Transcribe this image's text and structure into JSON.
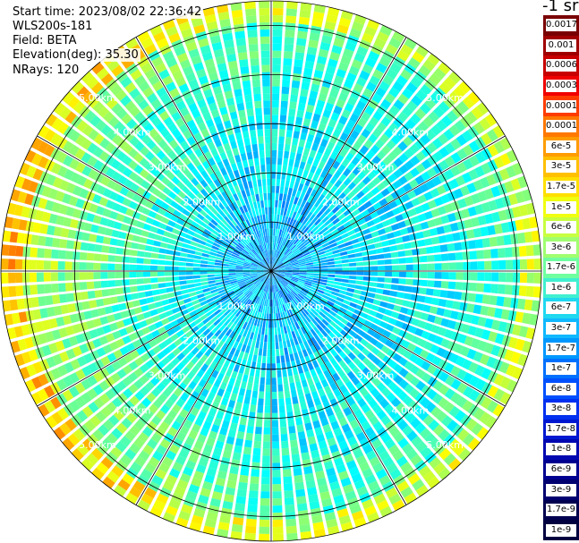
{
  "info": {
    "start_time": "Start time: 2023/08/02 22:36:42",
    "instrument": "WLS200s-181",
    "field": "Field: BETA",
    "elevation": "Elevation(deg): 35.30",
    "nrays": "NRays: 120"
  },
  "chart_data": {
    "type": "ppi-polar-heatmap",
    "field": "BETA",
    "elevation_deg": 35.3,
    "nrays": 120,
    "max_range_km": 5.5,
    "range_rings_km": [
      1,
      2,
      3,
      4,
      5
    ],
    "ring_labels": [
      "1.00km",
      "2.00km",
      "3.00km",
      "4.00km",
      "5.00km"
    ],
    "colorbar": {
      "unit_label": "-1 sr",
      "tick_labels": [
        "0.0017",
        "0.001",
        "0.0006",
        "0.0003",
        "0.00017",
        "0.0001",
        "6e-5",
        "3e-5",
        "1.7e-5",
        "1e-5",
        "6e-6",
        "3e-6",
        "1.7e-6",
        "1e-6",
        "6e-7",
        "3e-7",
        "1.7e-7",
        "1e-7",
        "6e-8",
        "3e-8",
        "1.7e-8",
        "1e-8",
        "6e-9",
        "3e-9",
        "1.7e-9",
        "1e-9"
      ],
      "colors": [
        "#7a0000",
        "#a00000",
        "#c80000",
        "#f00000",
        "#ff3c00",
        "#ff7800",
        "#ff9c00",
        "#ffc000",
        "#ffe000",
        "#f0ff10",
        "#c8ff40",
        "#a0ff70",
        "#70ffa0",
        "#40f0d0",
        "#20d8f0",
        "#10b8ff",
        "#0098ff",
        "#0070ff",
        "#0050ff",
        "#0030f0",
        "#0018d0",
        "#0008b0",
        "#000090",
        "#000070",
        "#000050",
        "#000040"
      ]
    }
  }
}
